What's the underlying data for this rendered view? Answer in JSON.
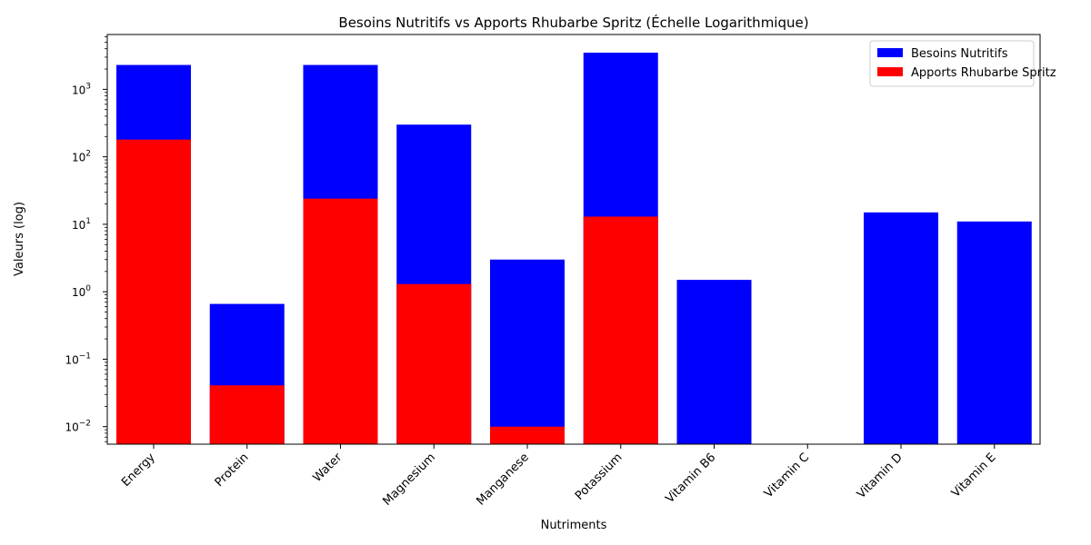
{
  "chart_data": {
    "type": "bar",
    "title": "Besoins Nutritifs vs Apports Rhubarbe Spritz (Échelle Logarithmique)",
    "xlabel": "Nutriments",
    "ylabel": "Valeurs (log)",
    "yscale": "log",
    "ylim": [
      0.0055,
      6500
    ],
    "yticks": [
      {
        "value": 0.01,
        "base": "10",
        "exp": "−2"
      },
      {
        "value": 0.1,
        "base": "10",
        "exp": "−1"
      },
      {
        "value": 1,
        "base": "10",
        "exp": "0"
      },
      {
        "value": 10,
        "base": "10",
        "exp": "1"
      },
      {
        "value": 100,
        "base": "10",
        "exp": "2"
      },
      {
        "value": 1000,
        "base": "10",
        "exp": "3"
      }
    ],
    "categories": [
      "Energy",
      "Protein",
      "Water",
      "Magnesium",
      "Manganese",
      "Potassium",
      "Vitamin B6",
      "Vitamin C",
      "Vitamin D",
      "Vitamin E"
    ],
    "series": [
      {
        "name": "Besoins Nutritifs",
        "color": "#0000ff",
        "values": [
          2300,
          0.66,
          2300,
          300,
          3,
          3500,
          1.5,
          null,
          15,
          11
        ]
      },
      {
        "name": "Apports Rhubarbe Spritz",
        "color": "#ff0000",
        "values": [
          180,
          0.041,
          24,
          1.3,
          0.01,
          13,
          null,
          null,
          null,
          null
        ]
      }
    ],
    "legend": {
      "placement": "top-right"
    },
    "grid": false
  }
}
